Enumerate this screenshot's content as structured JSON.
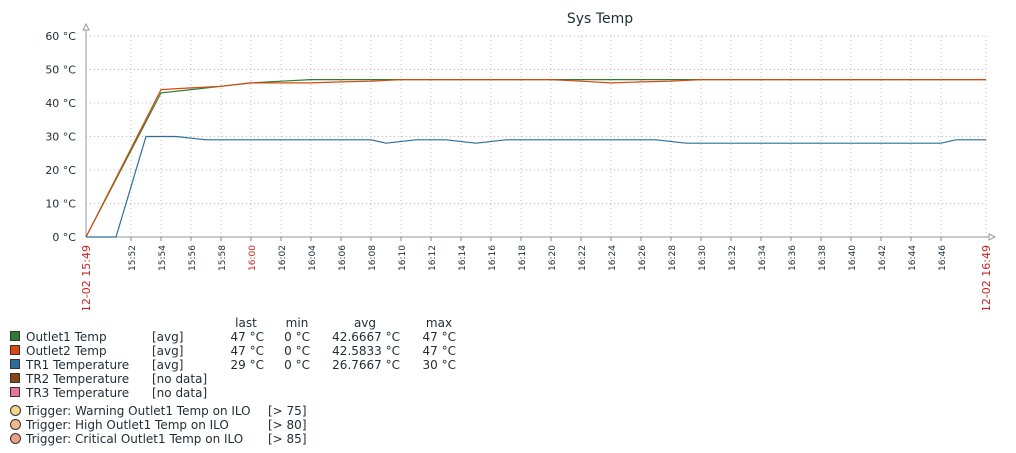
{
  "chart_data": {
    "type": "line",
    "title": "Sys Temp",
    "y_unit": "°C",
    "ylim": [
      0,
      60
    ],
    "y_ticks": [
      "0 °C",
      "10 °C",
      "20 °C",
      "30 °C",
      "40 °C",
      "50 °C",
      "60 °C"
    ],
    "x_start_label": "12-02 15:49",
    "x_end_label": "12-02 16:49",
    "x_tick_labels": [
      "15:52",
      "15:54",
      "15:56",
      "15:58",
      "16:00",
      "16:02",
      "16:04",
      "16:06",
      "16:08",
      "16:10",
      "16:12",
      "16:14",
      "16:16",
      "16:18",
      "16:20",
      "16:22",
      "16:24",
      "16:26",
      "16:28",
      "16:30",
      "16:32",
      "16:34",
      "16:36",
      "16:38",
      "16:40",
      "16:42",
      "16:44",
      "16:46"
    ],
    "highlight_tick": "16:00",
    "grid": true,
    "series": [
      {
        "name": "Outlet1 Temp",
        "color": "#2e7d2e",
        "points": [
          [
            "15:49",
            0
          ],
          [
            "15:54",
            43
          ],
          [
            "15:56",
            44
          ],
          [
            "15:58",
            45
          ],
          [
            "16:00",
            46
          ],
          [
            "16:02",
            46.5
          ],
          [
            "16:04",
            47
          ],
          [
            "16:06",
            47
          ],
          [
            "16:08",
            47
          ],
          [
            "16:10",
            47
          ],
          [
            "16:20",
            47
          ],
          [
            "16:22",
            47
          ],
          [
            "16:24",
            47
          ],
          [
            "16:26",
            47
          ],
          [
            "16:28",
            47
          ],
          [
            "16:30",
            47
          ],
          [
            "16:49",
            47
          ]
        ]
      },
      {
        "name": "Outlet2 Temp",
        "color": "#d9480f",
        "points": [
          [
            "15:49",
            0
          ],
          [
            "15:54",
            44
          ],
          [
            "15:56",
            44.5
          ],
          [
            "15:58",
            45
          ],
          [
            "16:00",
            46
          ],
          [
            "16:02",
            46
          ],
          [
            "16:04",
            46
          ],
          [
            "16:06",
            46.3
          ],
          [
            "16:08",
            46.5
          ],
          [
            "16:10",
            47
          ],
          [
            "16:20",
            47
          ],
          [
            "16:22",
            46.5
          ],
          [
            "16:24",
            46
          ],
          [
            "16:26",
            46.3
          ],
          [
            "16:28",
            46.5
          ],
          [
            "16:30",
            47
          ],
          [
            "16:49",
            47
          ]
        ]
      },
      {
        "name": "TR1 Temperature",
        "color": "#2c6e99",
        "points": [
          [
            "15:49",
            0
          ],
          [
            "15:51",
            0
          ],
          [
            "15:53",
            30
          ],
          [
            "15:55",
            30
          ],
          [
            "15:57",
            29
          ],
          [
            "16:00",
            29
          ],
          [
            "16:08",
            29
          ],
          [
            "16:09",
            28
          ],
          [
            "16:11",
            29
          ],
          [
            "16:13",
            29
          ],
          [
            "16:15",
            28
          ],
          [
            "16:17",
            29
          ],
          [
            "16:27",
            29
          ],
          [
            "16:29",
            28
          ],
          [
            "16:46",
            28
          ],
          [
            "16:47",
            29
          ],
          [
            "16:49",
            29
          ]
        ]
      },
      {
        "name": "TR2 Temperature",
        "color": "#8b4513",
        "points": []
      },
      {
        "name": "TR3 Temperature",
        "color": "#e8749a",
        "points": []
      }
    ]
  },
  "legend": {
    "headers": {
      "last": "last",
      "min": "min",
      "avg": "avg",
      "max": "max"
    },
    "items": [
      {
        "name": "Outlet1 Temp",
        "color": "#2e7d2e",
        "fn": "[avg]",
        "last": "47 °C",
        "min": "0 °C",
        "avg": "42.6667 °C",
        "max": "47 °C"
      },
      {
        "name": "Outlet2 Temp",
        "color": "#d9480f",
        "fn": "[avg]",
        "last": "47 °C",
        "min": "0 °C",
        "avg": "42.5833 °C",
        "max": "47 °C"
      },
      {
        "name": "TR1 Temperature",
        "color": "#2c6e99",
        "fn": "[avg]",
        "last": "29 °C",
        "min": "0 °C",
        "avg": "26.7667 °C",
        "max": "30 °C"
      },
      {
        "name": "TR2 Temperature",
        "color": "#8b4513",
        "fn": "[no data]",
        "last": "",
        "min": "",
        "avg": "",
        "max": ""
      },
      {
        "name": "TR3 Temperature",
        "color": "#e8749a",
        "fn": "[no data]",
        "last": "",
        "min": "",
        "avg": "",
        "max": ""
      }
    ]
  },
  "triggers": [
    {
      "label": "Trigger: Warning Outlet1 Temp on ILO",
      "condition": "[> 75]",
      "color": "#f5d58a"
    },
    {
      "label": "Trigger: High Outlet1 Temp on ILO",
      "condition": "[> 80]",
      "color": "#f2b98a"
    },
    {
      "label": "Trigger: Critical Outlet1 Temp on ILO",
      "condition": "[> 85]",
      "color": "#ee9f8a"
    }
  ]
}
